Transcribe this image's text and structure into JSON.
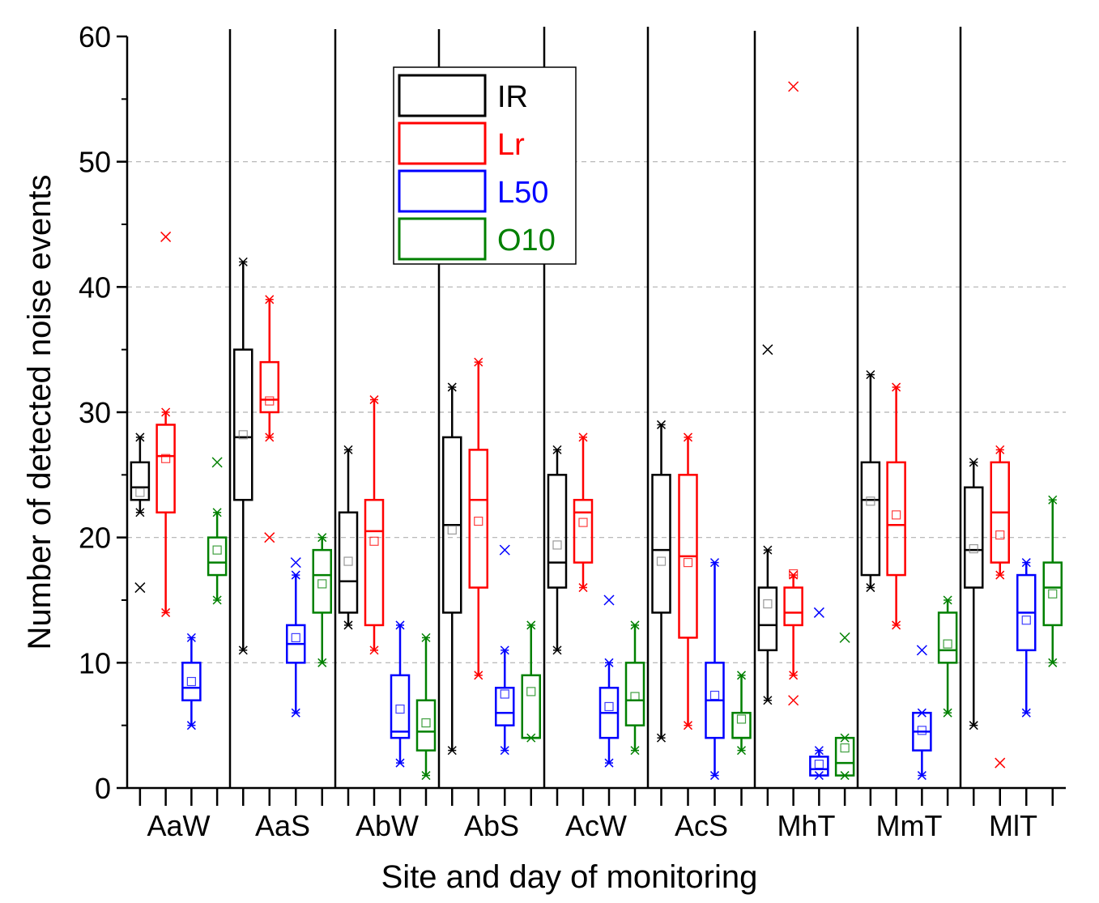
{
  "chart_data": {
    "type": "box",
    "title": "",
    "xlabel": "Site and day of monitoring",
    "ylabel": "Number of detected noise events",
    "ylim": [
      0,
      60
    ],
    "yticks": [
      0,
      10,
      20,
      30,
      40,
      50,
      60
    ],
    "ytick_labels": [
      "0",
      "10",
      "20",
      "30",
      "40",
      "50",
      "60"
    ],
    "grid": "horizontal dashed at 10,20,30,40,50",
    "legend_position": "top-center",
    "groups": [
      "AaW",
      "AaS",
      "AbW",
      "AbS",
      "AcW",
      "AcS",
      "MhT",
      "MmT",
      "MlT"
    ],
    "series": [
      {
        "name": "IR",
        "color": "#000000",
        "boxes": [
          {
            "q1": 23,
            "median": 24,
            "q3": 26,
            "mean": 23.6,
            "whisker_low": 22,
            "whisker_high": 28,
            "outliers": [
              16
            ]
          },
          {
            "q1": 23,
            "median": 28,
            "q3": 35,
            "mean": 28.2,
            "whisker_low": 11,
            "whisker_high": 42,
            "outliers": []
          },
          {
            "q1": 14,
            "median": 16.5,
            "q3": 22,
            "mean": 18.1,
            "whisker_low": 13,
            "whisker_high": 27,
            "outliers": []
          },
          {
            "q1": 14,
            "median": 21,
            "q3": 28,
            "mean": 20.6,
            "whisker_low": 3,
            "whisker_high": 32,
            "outliers": []
          },
          {
            "q1": 16,
            "median": 18,
            "q3": 25,
            "mean": 19.4,
            "whisker_low": 11,
            "whisker_high": 27,
            "outliers": []
          },
          {
            "q1": 14,
            "median": 19,
            "q3": 25,
            "mean": 18.1,
            "whisker_low": 4,
            "whisker_high": 29,
            "outliers": []
          },
          {
            "q1": 11,
            "median": 13,
            "q3": 16,
            "mean": 14.7,
            "whisker_low": 7,
            "whisker_high": 19,
            "outliers": [
              35
            ]
          },
          {
            "q1": 17,
            "median": 23,
            "q3": 26,
            "mean": 22.9,
            "whisker_low": 16,
            "whisker_high": 33,
            "outliers": []
          },
          {
            "q1": 16,
            "median": 19,
            "q3": 24,
            "mean": 19.1,
            "whisker_low": 5,
            "whisker_high": 26,
            "outliers": []
          }
        ]
      },
      {
        "name": "Lr",
        "color": "#ff0000",
        "boxes": [
          {
            "q1": 22,
            "median": 26.5,
            "q3": 29,
            "mean": 26.3,
            "whisker_low": 14,
            "whisker_high": 30,
            "outliers": [
              44
            ]
          },
          {
            "q1": 30,
            "median": 31,
            "q3": 34,
            "mean": 30.9,
            "whisker_low": 28,
            "whisker_high": 39,
            "outliers": [
              20
            ]
          },
          {
            "q1": 13,
            "median": 20.5,
            "q3": 23,
            "mean": 19.7,
            "whisker_low": 11,
            "whisker_high": 31,
            "outliers": []
          },
          {
            "q1": 16,
            "median": 23,
            "q3": 27,
            "mean": 21.3,
            "whisker_low": 9,
            "whisker_high": 34,
            "outliers": []
          },
          {
            "q1": 18,
            "median": 22,
            "q3": 23,
            "mean": 21.2,
            "whisker_low": 16,
            "whisker_high": 28,
            "outliers": []
          },
          {
            "q1": 12,
            "median": 18.5,
            "q3": 25,
            "mean": 18,
            "whisker_low": 5,
            "whisker_high": 28,
            "outliers": []
          },
          {
            "q1": 13,
            "median": 14,
            "q3": 16,
            "mean": 17.1,
            "whisker_low": 9,
            "whisker_high": 17,
            "outliers": [
              56,
              7
            ]
          },
          {
            "q1": 17,
            "median": 21,
            "q3": 26,
            "mean": 21.8,
            "whisker_low": 13,
            "whisker_high": 32,
            "outliers": []
          },
          {
            "q1": 18,
            "median": 22,
            "q3": 26,
            "mean": 20.2,
            "whisker_low": 17,
            "whisker_high": 27,
            "outliers": [
              2
            ]
          }
        ]
      },
      {
        "name": "L50",
        "color": "#0000ff",
        "boxes": [
          {
            "q1": 7,
            "median": 8,
            "q3": 10,
            "mean": 8.5,
            "whisker_low": 5,
            "whisker_high": 12,
            "outliers": []
          },
          {
            "q1": 10,
            "median": 11.5,
            "q3": 13,
            "mean": 12,
            "whisker_low": 6,
            "whisker_high": 17,
            "outliers": [
              18
            ]
          },
          {
            "q1": 4,
            "median": 4.5,
            "q3": 9,
            "mean": 6.3,
            "whisker_low": 2,
            "whisker_high": 13,
            "outliers": []
          },
          {
            "q1": 5,
            "median": 6,
            "q3": 8,
            "mean": 7.5,
            "whisker_low": 3,
            "whisker_high": 11,
            "outliers": [
              19
            ]
          },
          {
            "q1": 4,
            "median": 6,
            "q3": 8,
            "mean": 6.5,
            "whisker_low": 2,
            "whisker_high": 10,
            "outliers": [
              15
            ]
          },
          {
            "q1": 4,
            "median": 7,
            "q3": 10,
            "mean": 7.4,
            "whisker_low": 1,
            "whisker_high": 18,
            "outliers": []
          },
          {
            "q1": 1,
            "median": 1.5,
            "q3": 2.5,
            "mean": 1.9,
            "whisker_low": 1,
            "whisker_high": 3,
            "outliers": [
              14
            ]
          },
          {
            "q1": 3,
            "median": 4.5,
            "q3": 6,
            "mean": 4.6,
            "whisker_low": 1,
            "whisker_high": 6,
            "outliers": [
              11
            ]
          },
          {
            "q1": 11,
            "median": 14,
            "q3": 17,
            "mean": 13.4,
            "whisker_low": 6,
            "whisker_high": 18,
            "outliers": []
          }
        ]
      },
      {
        "name": "O10",
        "color": "#008000",
        "boxes": [
          {
            "q1": 17,
            "median": 18,
            "q3": 20,
            "mean": 19,
            "whisker_low": 15,
            "whisker_high": 22,
            "outliers": [
              26
            ]
          },
          {
            "q1": 14,
            "median": 17,
            "q3": 19,
            "mean": 16.3,
            "whisker_low": 10,
            "whisker_high": 20,
            "outliers": []
          },
          {
            "q1": 3,
            "median": 4.5,
            "q3": 7,
            "mean": 5.2,
            "whisker_low": 1,
            "whisker_high": 12,
            "outliers": []
          },
          {
            "q1": 4,
            "median": 4,
            "q3": 9,
            "mean": 7.7,
            "whisker_low": 4,
            "whisker_high": 13,
            "outliers": []
          },
          {
            "q1": 5,
            "median": 7,
            "q3": 10,
            "mean": 7.3,
            "whisker_low": 3,
            "whisker_high": 13,
            "outliers": []
          },
          {
            "q1": 4,
            "median": 4,
            "q3": 6,
            "mean": 5.5,
            "whisker_low": 3,
            "whisker_high": 9,
            "outliers": []
          },
          {
            "q1": 1,
            "median": 2,
            "q3": 4,
            "mean": 3.2,
            "whisker_low": 1,
            "whisker_high": 4,
            "outliers": [
              12
            ]
          },
          {
            "q1": 10,
            "median": 11,
            "q3": 14,
            "mean": 11.5,
            "whisker_low": 6,
            "whisker_high": 15,
            "outliers": []
          },
          {
            "q1": 13,
            "median": 16,
            "q3": 18,
            "mean": 15.5,
            "whisker_low": 10,
            "whisker_high": 23,
            "outliers": []
          }
        ]
      }
    ]
  }
}
